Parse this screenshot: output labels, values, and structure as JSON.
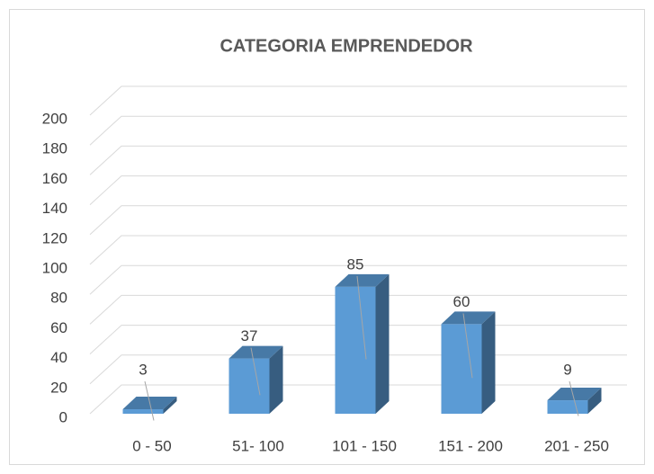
{
  "chart_data": {
    "type": "bar3d",
    "title": "CATEGORIA EMPRENDEDOR",
    "categories": [
      "0 - 50",
      "51- 100",
      "101 - 150",
      "151 - 200",
      "201 - 250"
    ],
    "values": [
      3,
      37,
      85,
      60,
      9
    ],
    "color": "#5b9bd5",
    "ylim": [
      0,
      200
    ],
    "yticks": [
      0,
      20,
      40,
      60,
      80,
      100,
      120,
      140,
      160,
      180,
      200
    ],
    "grid": true
  }
}
